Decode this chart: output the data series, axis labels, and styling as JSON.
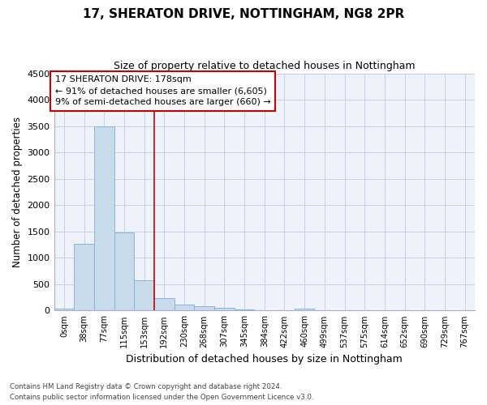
{
  "title": "17, SHERATON DRIVE, NOTTINGHAM, NG8 2PR",
  "subtitle": "Size of property relative to detached houses in Nottingham",
  "xlabel": "Distribution of detached houses by size in Nottingham",
  "ylabel": "Number of detached properties",
  "bar_color": "#c9daea",
  "bar_edge_color": "#7ab0d4",
  "background_color": "#eef2fb",
  "grid_color": "#c8cfe8",
  "vline_color": "#cc0000",
  "vline_x": 4.5,
  "annotation_line1": "17 SHERATON DRIVE: 178sqm",
  "annotation_line2": "← 91% of detached houses are smaller (6,605)",
  "annotation_line3": "9% of semi-detached houses are larger (660) →",
  "categories": [
    "0sqm",
    "38sqm",
    "77sqm",
    "115sqm",
    "153sqm",
    "192sqm",
    "230sqm",
    "268sqm",
    "307sqm",
    "345sqm",
    "384sqm",
    "422sqm",
    "460sqm",
    "499sqm",
    "537sqm",
    "575sqm",
    "614sqm",
    "652sqm",
    "690sqm",
    "729sqm",
    "767sqm"
  ],
  "bar_heights": [
    40,
    1270,
    3500,
    1480,
    570,
    235,
    110,
    80,
    50,
    25,
    0,
    0,
    40,
    0,
    0,
    0,
    0,
    0,
    0,
    0,
    0
  ],
  "ylim": [
    0,
    4500
  ],
  "yticks": [
    0,
    500,
    1000,
    1500,
    2000,
    2500,
    3000,
    3500,
    4000,
    4500
  ],
  "footnote1": "Contains HM Land Registry data © Crown copyright and database right 2024.",
  "footnote2": "Contains public sector information licensed under the Open Government Licence v3.0."
}
